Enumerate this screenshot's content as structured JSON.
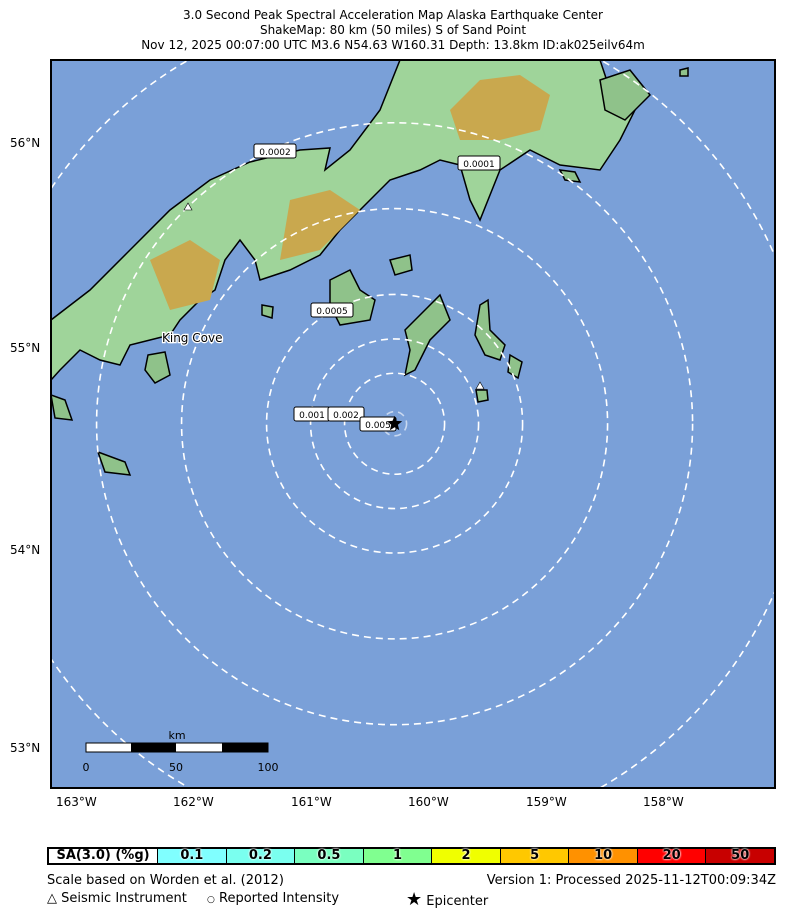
{
  "title": {
    "line1": "3.0 Second Peak Spectral Acceleration Map Alaska Earthquake Center",
    "line2": "ShakeMap: 80 km (50 miles) S of Sand Point",
    "line3": "Nov 12, 2025 00:07:00 UTC M3.6 N54.63 W160.31 Depth: 13.8km ID:ak025eilv64m"
  },
  "map": {
    "ocean_color": "#7aa0d8",
    "epicenter": {
      "lat": 54.63,
      "lon": -160.31
    },
    "lat_ticks": [
      "56°N",
      "55°N",
      "54°N",
      "53°N"
    ],
    "lon_ticks": [
      "163°W",
      "162°W",
      "161°W",
      "160°W",
      "159°W",
      "158°W"
    ],
    "place_label": "King Cove",
    "contour_labels": [
      "0.0002",
      "0.0001",
      "0.0005",
      "0.001",
      "0.002",
      "0.005"
    ],
    "scalebar": {
      "unit": "km",
      "ticks": [
        "0",
        "50",
        "100"
      ]
    }
  },
  "legend": {
    "label": "SA(3.0) (%g)",
    "bins": [
      {
        "value": "0.1",
        "color": "#80ffff"
      },
      {
        "value": "0.2",
        "color": "#7affef"
      },
      {
        "value": "0.5",
        "color": "#7affc0"
      },
      {
        "value": "1",
        "color": "#80ff90"
      },
      {
        "value": "2",
        "color": "#f0ff00"
      },
      {
        "value": "5",
        "color": "#ffc800"
      },
      {
        "value": "10",
        "color": "#ff9100"
      },
      {
        "value": "20",
        "color": "#ff0000"
      },
      {
        "value": "50",
        "color": "#c80000"
      }
    ]
  },
  "footer": {
    "scale_note": "Scale based on Worden et al. (2012)",
    "version": "Version 1: Processed 2025-11-12T00:09:34Z",
    "seismic": "Seismic Instrument",
    "reported": "Reported Intensity",
    "epicenter": "Epicenter"
  }
}
